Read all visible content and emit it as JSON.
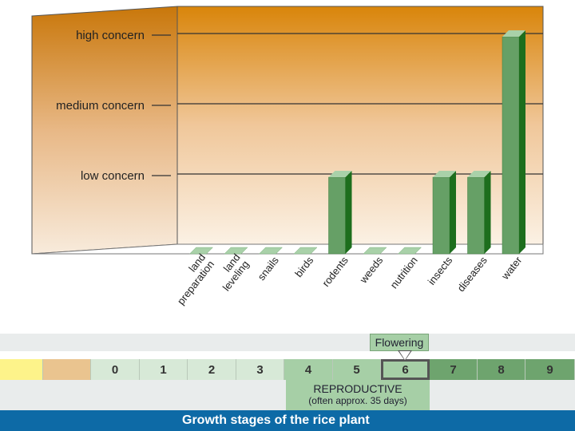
{
  "chart_data": {
    "type": "bar",
    "ylim": [
      0,
      3
    ],
    "y_levels": [
      {
        "value": 1,
        "label": "low concern"
      },
      {
        "value": 2,
        "label": "medium concern"
      },
      {
        "value": 3,
        "label": "high concern"
      }
    ],
    "categories": [
      "land preparation",
      "land leveling",
      "snails",
      "birds",
      "rodents",
      "weeds",
      "nutrition",
      "insects",
      "diseases",
      "water"
    ],
    "category_lines": [
      [
        "land",
        "preparation"
      ],
      [
        "land",
        "leveling"
      ],
      [
        "snails"
      ],
      [
        "birds"
      ],
      [
        "rodents"
      ],
      [
        "weeds"
      ],
      [
        "nutrition"
      ],
      [
        "insects"
      ],
      [
        "diseases"
      ],
      [
        "water"
      ]
    ],
    "values": [
      0,
      0,
      0,
      0,
      1,
      0,
      0,
      1,
      1,
      3
    ]
  },
  "timeline": {
    "flowering_label": "Flowering",
    "stages": [
      "",
      "",
      "0",
      "1",
      "2",
      "3",
      "4",
      "5",
      "6",
      "7",
      "8",
      "9"
    ],
    "stage_colors": [
      "#fdf38a",
      "#eac48f",
      "#d7e9d7",
      "#d7e9d7",
      "#d7e9d7",
      "#d7e9d7",
      "#a6cfa6",
      "#a6cfa6",
      "#a6cfa6",
      "#6ea46e",
      "#6ea46e",
      "#6ea46e"
    ],
    "reproductive_title": "REPRODUCTIVE",
    "reproductive_note": "(often approx. 35 days)",
    "footer_title": "Growth stages of the rice plant"
  },
  "colors": {
    "bar_front": "#66a066",
    "bar_side": "#1d6e1d",
    "bar_top": "#a9d1a9",
    "wall_top": "#d9850a",
    "wall_bottom": "#fbf1e4"
  }
}
